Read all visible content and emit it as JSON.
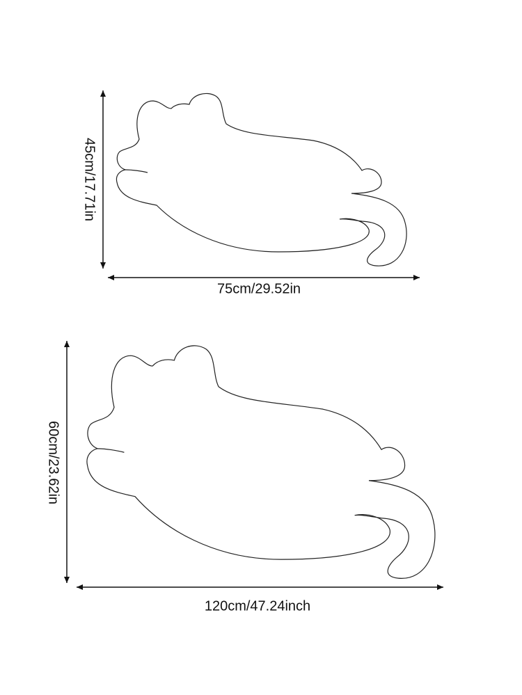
{
  "sizes": [
    {
      "height": "45cm/17.71in",
      "width": "75cm/29.52in"
    },
    {
      "height": "60cm/23.62in",
      "width": "120cm/47.24inch"
    }
  ]
}
